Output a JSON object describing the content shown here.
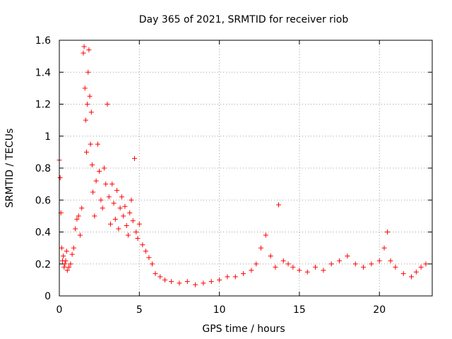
{
  "chart_data": {
    "type": "scatter",
    "title": "Day 365 of 2021, SRMTID for receiver riob",
    "xlabel": "GPS time / hours",
    "ylabel": "SRMTID / TECUs",
    "xlim": [
      0,
      23.3
    ],
    "ylim": [
      0,
      1.6
    ],
    "x_ticks": [
      0,
      5,
      10,
      15,
      20
    ],
    "x_tick_labels": [
      "0",
      "5",
      "10",
      "15",
      "20"
    ],
    "y_ticks": [
      0,
      0.2,
      0.4,
      0.6,
      0.8,
      1.0,
      1.2,
      1.4,
      1.6
    ],
    "y_tick_labels": [
      "0",
      "0.2",
      "0.4",
      "0.6",
      "0.8",
      "1",
      "1.2",
      "1.4",
      "1.6"
    ],
    "grid": true,
    "marker": "+",
    "colors": {
      "points": "#ff0000",
      "grid": "#a0a0a0",
      "axes": "#000000"
    },
    "series": [
      {
        "name": "SRMTID",
        "x": [
          0.0,
          0.05,
          0.1,
          0.15,
          0.2,
          0.25,
          0.3,
          0.35,
          0.4,
          0.45,
          0.5,
          0.6,
          0.7,
          0.8,
          0.9,
          1.0,
          1.1,
          1.2,
          1.3,
          1.4,
          1.5,
          1.55,
          1.6,
          1.65,
          1.7,
          1.75,
          1.8,
          1.85,
          1.9,
          1.95,
          2.0,
          2.05,
          2.1,
          2.2,
          2.3,
          2.4,
          2.5,
          2.6,
          2.7,
          2.8,
          2.9,
          3.0,
          3.1,
          3.2,
          3.3,
          3.4,
          3.5,
          3.6,
          3.7,
          3.8,
          3.9,
          4.0,
          4.1,
          4.2,
          4.3,
          4.4,
          4.5,
          4.6,
          4.7,
          4.8,
          4.9,
          5.0,
          5.2,
          5.4,
          5.6,
          5.8,
          6.0,
          6.3,
          6.6,
          7.0,
          7.5,
          8.0,
          8.5,
          9.0,
          9.5,
          10.0,
          10.5,
          11.0,
          11.5,
          12.0,
          12.3,
          12.6,
          12.9,
          13.2,
          13.5,
          13.7,
          14.0,
          14.3,
          14.6,
          15.0,
          15.5,
          16.0,
          16.5,
          17.0,
          17.5,
          18.0,
          18.5,
          19.0,
          19.5,
          20.0,
          20.3,
          20.5,
          20.7,
          21.0,
          21.5,
          22.0,
          22.3,
          22.6,
          22.9
        ],
        "y": [
          0.85,
          0.74,
          0.52,
          0.3,
          0.22,
          0.25,
          0.18,
          0.2,
          0.22,
          0.28,
          0.16,
          0.18,
          0.2,
          0.26,
          0.3,
          0.42,
          0.48,
          0.5,
          0.38,
          0.55,
          1.52,
          1.56,
          1.3,
          1.1,
          0.9,
          1.2,
          1.4,
          1.54,
          1.25,
          0.95,
          1.15,
          0.82,
          0.65,
          0.5,
          0.72,
          0.95,
          0.78,
          0.6,
          0.55,
          0.8,
          0.7,
          1.2,
          0.62,
          0.45,
          0.7,
          0.58,
          0.48,
          0.66,
          0.42,
          0.55,
          0.62,
          0.5,
          0.56,
          0.44,
          0.38,
          0.52,
          0.6,
          0.47,
          0.86,
          0.4,
          0.36,
          0.45,
          0.32,
          0.28,
          0.24,
          0.2,
          0.14,
          0.12,
          0.1,
          0.09,
          0.08,
          0.09,
          0.07,
          0.08,
          0.09,
          0.1,
          0.12,
          0.12,
          0.14,
          0.16,
          0.2,
          0.3,
          0.38,
          0.25,
          0.18,
          0.57,
          0.22,
          0.2,
          0.18,
          0.16,
          0.15,
          0.18,
          0.16,
          0.2,
          0.22,
          0.25,
          0.2,
          0.18,
          0.2,
          0.22,
          0.3,
          0.4,
          0.22,
          0.18,
          0.14,
          0.12,
          0.15,
          0.18,
          0.2
        ]
      }
    ]
  }
}
